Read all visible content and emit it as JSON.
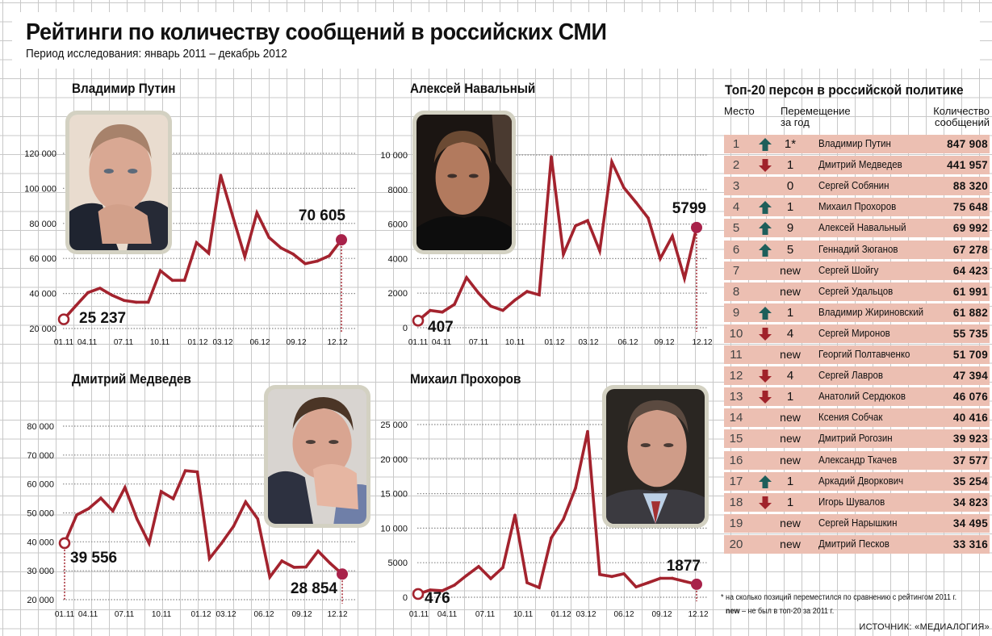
{
  "header": {
    "title": "Рейтинги по количеству сообщений в российских СМИ",
    "subtitle": "Период исследования: январь 2011 – декабрь 2012"
  },
  "colors": {
    "line": "#a3232e",
    "end_marker": "#a8224a",
    "row_bg": "#ecbfb2",
    "arrow_up": "#1e5e5a",
    "arrow_down": "#a0222a",
    "gridline": "#888888"
  },
  "chart_data": [
    {
      "type": "line",
      "title": "Владимир Путин",
      "photo": "portrait-putin",
      "x_ticks": [
        "01.11",
        "04.11",
        "07.11",
        "10.11",
        "01.12",
        "03.12",
        "06.12",
        "09.12",
        "12.12"
      ],
      "y_ticks": [
        "20 000",
        "40 000",
        "60 000",
        "80 000",
        "100 000",
        "120 000"
      ],
      "y_tick_values": [
        20000,
        40000,
        60000,
        80000,
        100000,
        120000
      ],
      "ylim": [
        20000,
        120000
      ],
      "x": [
        "01.11",
        "02.11",
        "03.11",
        "04.11",
        "05.11",
        "06.11",
        "07.11",
        "08.11",
        "09.11",
        "10.11",
        "11.11",
        "12.11",
        "01.12",
        "02.12",
        "03.12",
        "04.12",
        "05.12",
        "06.12",
        "07.12",
        "08.12",
        "09.12",
        "10.12",
        "11.12",
        "12.12"
      ],
      "values": [
        25237,
        33000,
        40500,
        43000,
        39000,
        36000,
        35000,
        35000,
        53000,
        47500,
        47500,
        69000,
        63000,
        107500,
        84000,
        61000,
        86000,
        72000,
        66000,
        62500,
        57000,
        58500,
        61500,
        70605
      ],
      "start_label": "25 237",
      "end_label": "70 605"
    },
    {
      "type": "line",
      "title": "Алексей Навальный",
      "photo": "portrait-navalny",
      "x_ticks": [
        "01.11",
        "04.11",
        "07.11",
        "10.11",
        "01.12",
        "03.12",
        "06.12",
        "09.12",
        "12.12"
      ],
      "y_ticks": [
        "0",
        "2000",
        "4000",
        "6000",
        "8000",
        "10 000"
      ],
      "y_tick_values": [
        0,
        2000,
        4000,
        6000,
        8000,
        10000
      ],
      "ylim": [
        0,
        10000
      ],
      "x": [
        "01.11",
        "02.11",
        "03.11",
        "04.11",
        "05.11",
        "06.11",
        "07.11",
        "08.11",
        "09.11",
        "10.11",
        "11.11",
        "12.11",
        "01.12",
        "02.12",
        "03.12",
        "04.12",
        "05.12",
        "06.12",
        "07.12",
        "08.12",
        "09.12",
        "10.12",
        "11.12",
        "12.12"
      ],
      "values": [
        407,
        1000,
        900,
        1350,
        2900,
        2000,
        1250,
        1000,
        1600,
        2100,
        1900,
        9900,
        4250,
        5900,
        6200,
        4450,
        9600,
        8100,
        7250,
        6350,
        4000,
        5300,
        2850,
        5799
      ],
      "start_label": "407",
      "end_label": "5799"
    },
    {
      "type": "line",
      "title": "Дмитрий Медведев",
      "photo": "portrait-medvedev",
      "x_ticks": [
        "01.11",
        "04.11",
        "07.11",
        "10.11",
        "01.12",
        "03.12",
        "06.12",
        "09.12",
        "12.12"
      ],
      "y_ticks": [
        "20 000",
        "30 000",
        "40 000",
        "50 000",
        "60 000",
        "70 000",
        "80 000"
      ],
      "y_tick_values": [
        20000,
        30000,
        40000,
        50000,
        60000,
        70000,
        80000
      ],
      "ylim": [
        20000,
        80000
      ],
      "x": [
        "01.11",
        "02.11",
        "03.11",
        "04.11",
        "05.11",
        "06.11",
        "07.11",
        "08.11",
        "09.11",
        "10.11",
        "11.11",
        "12.11",
        "01.12",
        "02.12",
        "03.12",
        "04.12",
        "05.12",
        "06.12",
        "07.12",
        "08.12",
        "09.12",
        "10.12",
        "11.12",
        "12.12"
      ],
      "values": [
        39556,
        49300,
        51500,
        55100,
        50700,
        58800,
        47900,
        39500,
        57400,
        54900,
        64600,
        64200,
        34200,
        39500,
        45400,
        53800,
        47900,
        27800,
        33400,
        31200,
        31300,
        36800,
        32600,
        28854
      ],
      "start_label": "39 556",
      "end_label": "28 854"
    },
    {
      "type": "line",
      "title": "Михаил Прохоров",
      "photo": "portrait-prokhorov",
      "x_ticks": [
        "01.11",
        "04.11",
        "07.11",
        "10.11",
        "01.12",
        "03.12",
        "06.12",
        "09.12",
        "12.12"
      ],
      "y_ticks": [
        "0",
        "5000",
        "10 000",
        "15 000",
        "20 000",
        "25 000"
      ],
      "y_tick_values": [
        0,
        5000,
        10000,
        15000,
        20000,
        25000
      ],
      "ylim": [
        0,
        25000
      ],
      "x": [
        "01.11",
        "02.11",
        "03.11",
        "04.11",
        "05.11",
        "06.11",
        "07.11",
        "08.11",
        "09.11",
        "10.11",
        "11.11",
        "12.11",
        "01.12",
        "02.12",
        "03.12",
        "04.12",
        "05.12",
        "06.12",
        "07.12",
        "08.12",
        "09.12",
        "10.12",
        "11.12",
        "12.12"
      ],
      "values": [
        476,
        1050,
        950,
        1750,
        3150,
        4450,
        2700,
        4300,
        11900,
        2100,
        1400,
        8600,
        11300,
        15800,
        24000,
        3300,
        3000,
        3400,
        1500,
        2100,
        2750,
        2750,
        2300,
        1877
      ],
      "start_label": "476",
      "end_label": "1877"
    }
  ],
  "table": {
    "title": "Топ-20 персон в российской политике",
    "col_place": "Место",
    "col_move_1": "Перемещение",
    "col_move_2": "за год",
    "col_count_1": "Количество",
    "col_count_2": "сообщений",
    "rows": [
      {
        "place": "1",
        "dir": "up",
        "move": "1*",
        "name": "Владимир Путин",
        "count": "847 908"
      },
      {
        "place": "2",
        "dir": "down",
        "move": "1",
        "name": "Дмитрий Медведев",
        "count": "441 957"
      },
      {
        "place": "3",
        "dir": "none",
        "move": "0",
        "name": "Сергей Собянин",
        "count": "88 320"
      },
      {
        "place": "4",
        "dir": "up",
        "move": "1",
        "name": "Михаил Прохоров",
        "count": "75 648"
      },
      {
        "place": "5",
        "dir": "up",
        "move": "9",
        "name": "Алексей Навальный",
        "count": "69 992"
      },
      {
        "place": "6",
        "dir": "up",
        "move": "5",
        "name": "Геннадий Зюганов",
        "count": "67 278"
      },
      {
        "place": "7",
        "dir": "new",
        "move": "new",
        "name": "Сергей Шойгу",
        "count": "64 423"
      },
      {
        "place": "8",
        "dir": "new",
        "move": "new",
        "name": "Сергей Удальцов",
        "count": "61 991"
      },
      {
        "place": "9",
        "dir": "up",
        "move": "1",
        "name": "Владимир Жириновский",
        "count": "61 882"
      },
      {
        "place": "10",
        "dir": "down",
        "move": "4",
        "name": "Сергей Миронов",
        "count": "55 735"
      },
      {
        "place": "11",
        "dir": "new",
        "move": "new",
        "name": "Георгий Полтавченко",
        "count": "51 709"
      },
      {
        "place": "12",
        "dir": "down",
        "move": "4",
        "name": "Сергей Лавров",
        "count": "47 394"
      },
      {
        "place": "13",
        "dir": "down",
        "move": "1",
        "name": "Анатолий Сердюков",
        "count": "46 076"
      },
      {
        "place": "14",
        "dir": "new",
        "move": "new",
        "name": "Ксения Собчак",
        "count": "40 416"
      },
      {
        "place": "15",
        "dir": "new",
        "move": "new",
        "name": "Дмитрий Рогозин",
        "count": "39 923"
      },
      {
        "place": "16",
        "dir": "new",
        "move": "new",
        "name": "Александр Ткачев",
        "count": "37 577"
      },
      {
        "place": "17",
        "dir": "up",
        "move": "1",
        "name": "Аркадий Дворкович",
        "count": "35 254"
      },
      {
        "place": "18",
        "dir": "down",
        "move": "1",
        "name": "Игорь Шувалов",
        "count": "34 823"
      },
      {
        "place": "19",
        "dir": "new",
        "move": "new",
        "name": "Сергей Нарышкин",
        "count": "34 495"
      },
      {
        "place": "20",
        "dir": "new",
        "move": "new",
        "name": "Дмитрий Песков",
        "count": "33 316"
      }
    ],
    "footnote_1": "* на сколько позиций переместился по сравнению с рейтингом 2011 г.",
    "footnote_2_bold": "new",
    "footnote_2": " – не был в топ-20 за 2011 г.",
    "source": "ИСТОЧНИК: «МЕДИАЛОГИЯ»"
  }
}
